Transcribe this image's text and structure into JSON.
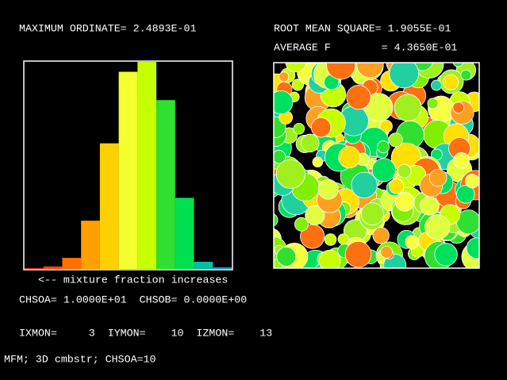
{
  "header": {
    "max_ordinate": "MAXIMUM ORDINATE= 2.4893E-01",
    "rms": "ROOT MEAN SQUARE= 1.9055E-01",
    "average": "AVERAGE F        = 4.3650E-01"
  },
  "histogram": {
    "type": "bar",
    "ylim": [
      0,
      0.24893
    ],
    "values": [
      0.001,
      0.003,
      0.0133,
      0.058,
      0.151,
      0.237,
      0.2489,
      0.203,
      0.0855,
      0.0086,
      0.002
    ],
    "colors": [
      "#ff2000",
      "#ff4800",
      "#ff7000",
      "#ffa000",
      "#ffd000",
      "#f4ff30",
      "#c8ff00",
      "#30e030",
      "#00e050",
      "#00c0a0",
      "#00a0d0"
    ],
    "caption": "<-- mixture fraction increases"
  },
  "footer": {
    "chso": "CHSOA= 1.0000E+01  CHSOB= 0.0000E+00",
    "monitor": "IXMON=     3  IYMON=    10  IZMON=    13",
    "title": "MFM; 3D cmbstr; CHSOA=10"
  }
}
